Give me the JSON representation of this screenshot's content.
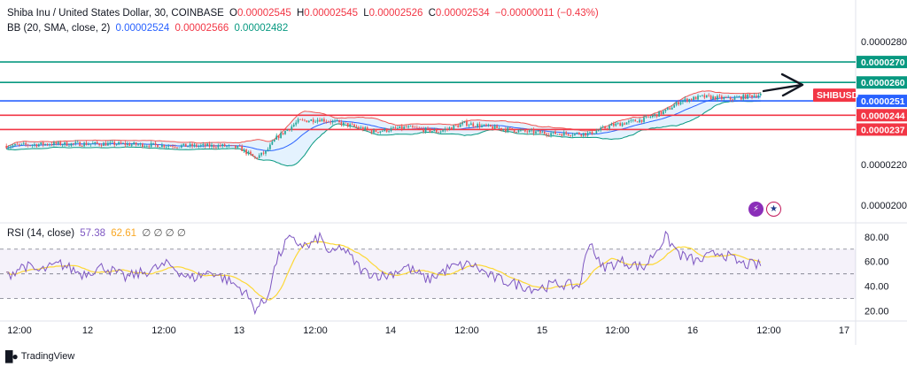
{
  "header": {
    "symbol": "Shiba Inu / United States Dollar, 30, COINBASE",
    "o_label": "O",
    "o_value": "0.00002545",
    "h_label": "H",
    "h_value": "0.00002545",
    "l_label": "L",
    "l_value": "0.00002526",
    "c_label": "C",
    "c_value": "0.00002534",
    "change": "−0.00000011 (−0.43%)"
  },
  "bb_legend": {
    "label": "BB (20, SMA, close, 2)",
    "basis": "0.00002524",
    "upper": "0.00002566",
    "lower": "0.00002482"
  },
  "rsi_legend": {
    "label": "RSI (14, close)",
    "rsi": "57.38",
    "ma": "62.61",
    "extra": "∅ ∅ ∅ ∅"
  },
  "colors": {
    "up": "#26a69a",
    "down": "#ef5350",
    "bb_upper": "#ef5350",
    "bb_lower": "#089981",
    "bb_basis": "#2962ff",
    "bb_fill": "#2196f3",
    "rsi": "#7e57c2",
    "rsi_ma": "#fdd835",
    "line_green": "#089981",
    "line_blue": "#2962ff",
    "line_red": "#f23645"
  },
  "footer": {
    "brand": "TradingView"
  },
  "icons": [
    "flash-icon",
    "us-flag-icon"
  ],
  "chart_data": {
    "type": "candlestick",
    "timeframe": "30",
    "x_axis_labels": [
      "12:00",
      "12",
      "12:00",
      "13",
      "12:00",
      "14",
      "12:00",
      "15",
      "12:00",
      "16",
      "12:00",
      "17"
    ],
    "price_axis": {
      "ticks": [
        "0.0000280",
        "0.0000270",
        "0.0000260",
        "0.0000251",
        "0.0000244",
        "0.0000237",
        "0.0000220",
        "0.0000200"
      ],
      "range": [
        1.94e-05,
        2.83e-05
      ]
    },
    "horizontal_levels": [
      {
        "value": 2.7e-05,
        "label": "0.0000270",
        "color": "#089981"
      },
      {
        "value": 2.6e-05,
        "label": "0.0000260",
        "color": "#089981"
      },
      {
        "value": 2.51e-05,
        "label": "0.0000251",
        "color": "#2962ff"
      },
      {
        "value": 2.44e-05,
        "label": "0.0000244",
        "color": "#f23645"
      },
      {
        "value": 2.37e-05,
        "label": "0.0000237",
        "color": "#f23645"
      }
    ],
    "symbol_tag": "SHIBUSD",
    "price_key_points": [
      [
        0,
        2.29e-05
      ],
      [
        20,
        2.3e-05
      ],
      [
        50,
        2.3e-05
      ],
      [
        80,
        2.29e-05
      ],
      [
        100,
        2.29e-05
      ],
      [
        108,
        2.28e-05
      ],
      [
        115,
        2.23e-05
      ],
      [
        120,
        2.26e-05
      ],
      [
        125,
        2.33e-05
      ],
      [
        135,
        2.41e-05
      ],
      [
        145,
        2.42e-05
      ],
      [
        155,
        2.4e-05
      ],
      [
        170,
        2.36e-05
      ],
      [
        185,
        2.38e-05
      ],
      [
        200,
        2.36e-05
      ],
      [
        212,
        2.4e-05
      ],
      [
        225,
        2.38e-05
      ],
      [
        240,
        2.36e-05
      ],
      [
        255,
        2.35e-05
      ],
      [
        270,
        2.35e-05
      ],
      [
        280,
        2.39e-05
      ],
      [
        295,
        2.42e-05
      ],
      [
        305,
        2.46e-05
      ],
      [
        312,
        2.51e-05
      ],
      [
        322,
        2.53e-05
      ],
      [
        335,
        2.52e-05
      ],
      [
        348,
        2.54e-05
      ]
    ],
    "rsi_panel": {
      "ticks": [
        80,
        60,
        40,
        20
      ],
      "overbought": 70,
      "oversold": 30,
      "mid": 50,
      "range": [
        14,
        87
      ],
      "rsi_key_points": [
        [
          0,
          48
        ],
        [
          8,
          57
        ],
        [
          15,
          52
        ],
        [
          25,
          58
        ],
        [
          35,
          50
        ],
        [
          45,
          56
        ],
        [
          55,
          47
        ],
        [
          65,
          52
        ],
        [
          75,
          58
        ],
        [
          85,
          46
        ],
        [
          95,
          52
        ],
        [
          105,
          42
        ],
        [
          110,
          36
        ],
        [
          115,
          22
        ],
        [
          120,
          28
        ],
        [
          125,
          60
        ],
        [
          130,
          78
        ],
        [
          135,
          75
        ],
        [
          140,
          72
        ],
        [
          145,
          80
        ],
        [
          150,
          65
        ],
        [
          155,
          72
        ],
        [
          165,
          52
        ],
        [
          175,
          48
        ],
        [
          185,
          56
        ],
        [
          195,
          45
        ],
        [
          205,
          55
        ],
        [
          215,
          58
        ],
        [
          225,
          47
        ],
        [
          235,
          42
        ],
        [
          245,
          38
        ],
        [
          255,
          42
        ],
        [
          265,
          40
        ],
        [
          270,
          78
        ],
        [
          275,
          55
        ],
        [
          285,
          60
        ],
        [
          295,
          55
        ],
        [
          305,
          80
        ],
        [
          312,
          65
        ],
        [
          320,
          60
        ],
        [
          330,
          68
        ],
        [
          340,
          58
        ],
        [
          348,
          57
        ]
      ]
    }
  }
}
